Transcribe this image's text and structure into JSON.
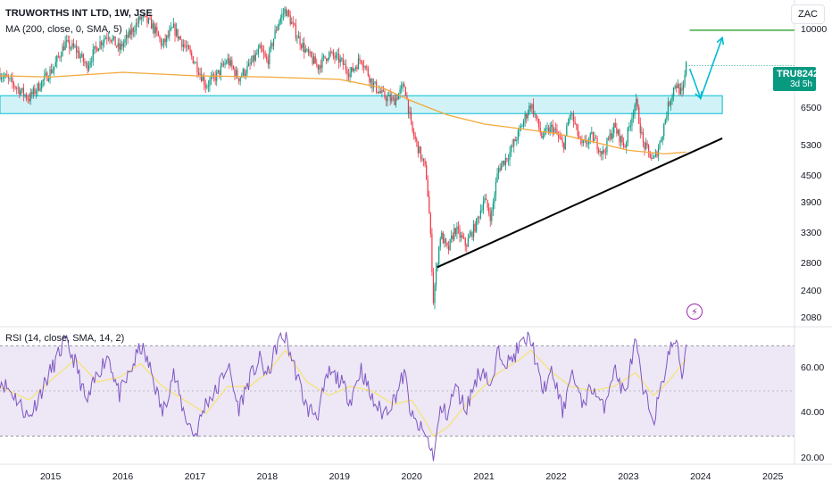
{
  "header": {
    "title": "TRUWORTHS INT LTD, 1W, JSE",
    "ma_indicator": "MA (200, close, 0, SMA, 5)",
    "rsi_indicator": "RSI (14, close, SMA, 14, 2)",
    "currency": "ZAC"
  },
  "price_badge": {
    "symbol": "TRU",
    "price": "8242",
    "countdown": "3d 5h",
    "color": "#089981"
  },
  "icons": {
    "alert": "lightning-icon"
  },
  "chart_data": [
    {
      "type": "candlestick",
      "title": "TRUWORTHS INT LTD, 1W, JSE",
      "y_scale": "log",
      "ylim": [
        2000,
        11500
      ],
      "xlim": [
        2014.3,
        2025.3
      ],
      "y_ticks": [
        10000,
        6500,
        5300,
        4500,
        3900,
        3300,
        2800,
        2400,
        2080
      ],
      "x_ticks": [
        "2015",
        "2016",
        "2017",
        "2018",
        "2019",
        "2020",
        "2021",
        "2022",
        "2023",
        "2024",
        "2025"
      ],
      "last_price": 8242,
      "colors": {
        "up": "#089981",
        "down": "#f23645",
        "ma": "#f2a93b",
        "zone": "#00bcd4",
        "trendline": "#000000",
        "target": "#4caf50",
        "projection": "#00bcd4"
      },
      "price_path": [
        [
          2014.3,
          7900
        ],
        [
          2014.5,
          7400
        ],
        [
          2014.7,
          6900
        ],
        [
          2014.9,
          7600
        ],
        [
          2015.05,
          8200
        ],
        [
          2015.2,
          9300
        ],
        [
          2015.35,
          9000
        ],
        [
          2015.5,
          8200
        ],
        [
          2015.65,
          9200
        ],
        [
          2015.8,
          9800
        ],
        [
          2015.95,
          9000
        ],
        [
          2016.1,
          9800
        ],
        [
          2016.25,
          10700
        ],
        [
          2016.4,
          10300
        ],
        [
          2016.55,
          9200
        ],
        [
          2016.7,
          10100
        ],
        [
          2016.85,
          9200
        ],
        [
          2017.0,
          8400
        ],
        [
          2017.15,
          7400
        ],
        [
          2017.3,
          7800
        ],
        [
          2017.45,
          8500
        ],
        [
          2017.6,
          7700
        ],
        [
          2017.75,
          8200
        ],
        [
          2017.9,
          9000
        ],
        [
          2018.0,
          8400
        ],
        [
          2018.15,
          10400
        ],
        [
          2018.25,
          11200
        ],
        [
          2018.4,
          9800
        ],
        [
          2018.55,
          8800
        ],
        [
          2018.7,
          8200
        ],
        [
          2018.85,
          8800
        ],
        [
          2019.0,
          8500
        ],
        [
          2019.15,
          7900
        ],
        [
          2019.3,
          8600
        ],
        [
          2019.45,
          7500
        ],
        [
          2019.6,
          7000
        ],
        [
          2019.75,
          6800
        ],
        [
          2019.9,
          7400
        ],
        [
          2020.0,
          5800
        ],
        [
          2020.1,
          5200
        ],
        [
          2020.2,
          4600
        ],
        [
          2020.25,
          3500
        ],
        [
          2020.3,
          2300
        ],
        [
          2020.4,
          3300
        ],
        [
          2020.5,
          3000
        ],
        [
          2020.6,
          3400
        ],
        [
          2020.75,
          3100
        ],
        [
          2020.9,
          3500
        ],
        [
          2021.0,
          4000
        ],
        [
          2021.1,
          3600
        ],
        [
          2021.2,
          4700
        ],
        [
          2021.35,
          5100
        ],
        [
          2021.5,
          5800
        ],
        [
          2021.65,
          6700
        ],
        [
          2021.8,
          5600
        ],
        [
          2021.95,
          5900
        ],
        [
          2022.1,
          5300
        ],
        [
          2022.2,
          6400
        ],
        [
          2022.35,
          5300
        ],
        [
          2022.5,
          5600
        ],
        [
          2022.65,
          5100
        ],
        [
          2022.8,
          5900
        ],
        [
          2022.95,
          5300
        ],
        [
          2023.1,
          6800
        ],
        [
          2023.2,
          5400
        ],
        [
          2023.35,
          4900
        ],
        [
          2023.45,
          5500
        ],
        [
          2023.55,
          6600
        ],
        [
          2023.65,
          7500
        ],
        [
          2023.75,
          7000
        ],
        [
          2023.8,
          8242
        ]
      ],
      "moving_average_200": [
        [
          2014.3,
          7800
        ],
        [
          2015.0,
          7750
        ],
        [
          2016.0,
          7950
        ],
        [
          2017.0,
          7800
        ],
        [
          2018.0,
          7750
        ],
        [
          2019.0,
          7650
        ],
        [
          2019.6,
          7300
        ],
        [
          2020.0,
          6800
        ],
        [
          2020.5,
          6300
        ],
        [
          2021.0,
          6000
        ],
        [
          2021.5,
          5850
        ],
        [
          2022.0,
          5700
        ],
        [
          2022.5,
          5450
        ],
        [
          2023.0,
          5200
        ],
        [
          2023.5,
          5100
        ],
        [
          2023.8,
          5150
        ]
      ],
      "zone": {
        "low": 6350,
        "high": 7000,
        "x_start": 2014.3,
        "x_end": 2024.3
      },
      "trendline": {
        "x1": 2020.35,
        "y1": 2750,
        "x2": 2024.3,
        "y2": 5550
      },
      "target_line": {
        "x1": 2023.85,
        "x2": 2025.3,
        "y": 10000
      },
      "projection": [
        [
          2023.85,
          8100
        ],
        [
          2024.0,
          6900
        ],
        [
          2024.3,
          9600
        ]
      ],
      "last_price_line": 8242
    },
    {
      "type": "line",
      "title": "RSI (14, close, SMA, 14, 2)",
      "ylim": [
        18,
        78
      ],
      "y_ticks": [
        60.0,
        40.0,
        20.0
      ],
      "band": {
        "upper": 70,
        "middle": 50,
        "lower": 30
      },
      "colors": {
        "rsi": "#7e57c2",
        "sma": "#f7e36e",
        "band": "#ede7f6",
        "band_line": "#787b86"
      },
      "rsi_path": [
        [
          2014.3,
          55
        ],
        [
          2014.5,
          48
        ],
        [
          2014.7,
          38
        ],
        [
          2014.9,
          52
        ],
        [
          2015.05,
          62
        ],
        [
          2015.2,
          72
        ],
        [
          2015.35,
          62
        ],
        [
          2015.5,
          44
        ],
        [
          2015.65,
          58
        ],
        [
          2015.8,
          66
        ],
        [
          2015.95,
          48
        ],
        [
          2016.1,
          58
        ],
        [
          2016.25,
          70
        ],
        [
          2016.4,
          58
        ],
        [
          2016.55,
          40
        ],
        [
          2016.7,
          58
        ],
        [
          2016.85,
          40
        ],
        [
          2017.0,
          30
        ],
        [
          2017.15,
          45
        ],
        [
          2017.3,
          50
        ],
        [
          2017.45,
          62
        ],
        [
          2017.6,
          42
        ],
        [
          2017.75,
          55
        ],
        [
          2017.9,
          64
        ],
        [
          2018.0,
          56
        ],
        [
          2018.15,
          72
        ],
        [
          2018.25,
          74
        ],
        [
          2018.4,
          58
        ],
        [
          2018.55,
          42
        ],
        [
          2018.7,
          40
        ],
        [
          2018.85,
          58
        ],
        [
          2019.0,
          55
        ],
        [
          2019.15,
          46
        ],
        [
          2019.3,
          60
        ],
        [
          2019.45,
          46
        ],
        [
          2019.6,
          40
        ],
        [
          2019.75,
          46
        ],
        [
          2019.9,
          58
        ],
        [
          2020.0,
          38
        ],
        [
          2020.1,
          34
        ],
        [
          2020.2,
          30
        ],
        [
          2020.25,
          26
        ],
        [
          2020.3,
          20
        ],
        [
          2020.4,
          42
        ],
        [
          2020.5,
          40
        ],
        [
          2020.6,
          52
        ],
        [
          2020.75,
          42
        ],
        [
          2020.9,
          56
        ],
        [
          2021.0,
          60
        ],
        [
          2021.1,
          50
        ],
        [
          2021.2,
          68
        ],
        [
          2021.35,
          62
        ],
        [
          2021.5,
          70
        ],
        [
          2021.65,
          74
        ],
        [
          2021.8,
          50
        ],
        [
          2021.95,
          58
        ],
        [
          2022.1,
          40
        ],
        [
          2022.2,
          60
        ],
        [
          2022.35,
          44
        ],
        [
          2022.5,
          52
        ],
        [
          2022.65,
          42
        ],
        [
          2022.8,
          60
        ],
        [
          2022.95,
          48
        ],
        [
          2023.1,
          72
        ],
        [
          2023.2,
          50
        ],
        [
          2023.35,
          38
        ],
        [
          2023.45,
          50
        ],
        [
          2023.55,
          66
        ],
        [
          2023.65,
          73
        ],
        [
          2023.75,
          56
        ],
        [
          2023.8,
          72
        ]
      ],
      "sma_path": [
        [
          2014.3,
          52
        ],
        [
          2014.7,
          46
        ],
        [
          2015.05,
          56
        ],
        [
          2015.35,
          64
        ],
        [
          2015.65,
          54
        ],
        [
          2015.95,
          56
        ],
        [
          2016.25,
          62
        ],
        [
          2016.55,
          52
        ],
        [
          2016.85,
          46
        ],
        [
          2017.15,
          40
        ],
        [
          2017.45,
          52
        ],
        [
          2017.75,
          52
        ],
        [
          2018.0,
          58
        ],
        [
          2018.25,
          68
        ],
        [
          2018.55,
          54
        ],
        [
          2018.85,
          48
        ],
        [
          2019.15,
          52
        ],
        [
          2019.45,
          50
        ],
        [
          2019.75,
          44
        ],
        [
          2020.0,
          46
        ],
        [
          2020.2,
          36
        ],
        [
          2020.3,
          30
        ],
        [
          2020.5,
          34
        ],
        [
          2020.75,
          44
        ],
        [
          2021.0,
          52
        ],
        [
          2021.2,
          58
        ],
        [
          2021.5,
          64
        ],
        [
          2021.65,
          68
        ],
        [
          2021.95,
          58
        ],
        [
          2022.2,
          52
        ],
        [
          2022.5,
          50
        ],
        [
          2022.8,
          52
        ],
        [
          2023.1,
          58
        ],
        [
          2023.35,
          48
        ],
        [
          2023.55,
          54
        ],
        [
          2023.8,
          64
        ]
      ]
    }
  ]
}
